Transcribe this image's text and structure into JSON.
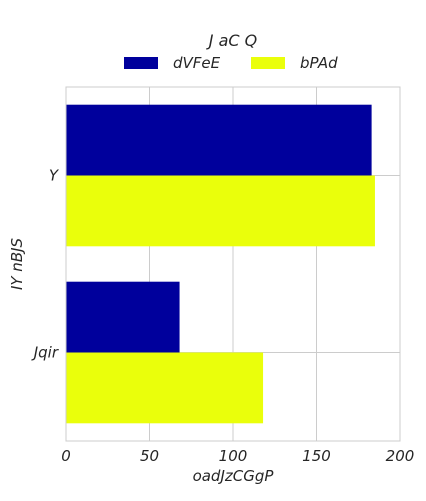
{
  "chart_data": {
    "type": "bar",
    "orientation": "horizontal",
    "legend_title": "J aC Q",
    "legend_placement": "top-center",
    "xlabel": "oadJzCGgP",
    "ylabel": "IY nBJS",
    "xlim": [
      0,
      200
    ],
    "x_ticks": [
      "0",
      "50",
      "100",
      "150",
      "200"
    ],
    "grid": true,
    "categories": [
      "Y",
      "Jqir"
    ],
    "series": [
      {
        "name": "dVFeE",
        "color": "#00009c",
        "values": [
          183,
          68
        ]
      },
      {
        "name": "bPAd",
        "color": "#eaff0b",
        "values": [
          185,
          118
        ]
      }
    ]
  }
}
